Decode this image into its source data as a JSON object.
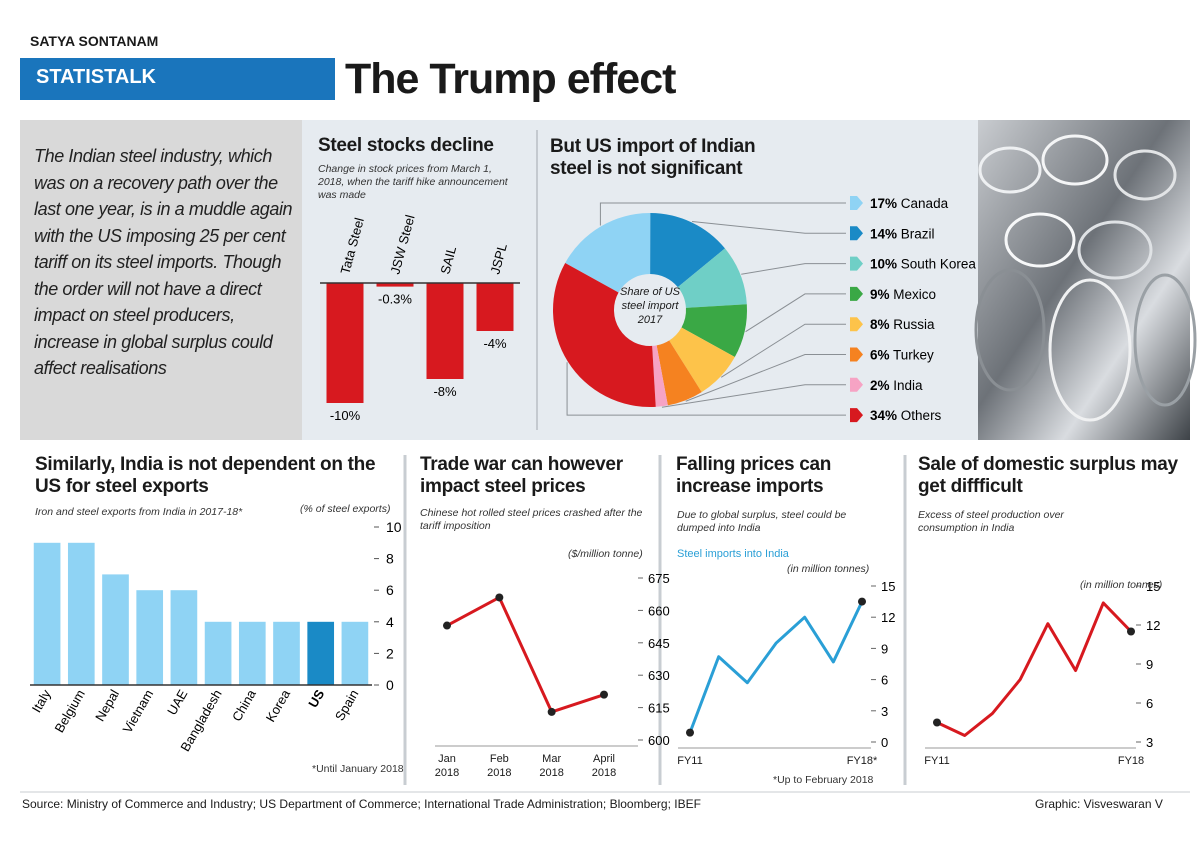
{
  "header": {
    "byline": "SATYA SONTANAM",
    "section": "STATISTALK",
    "title": "The Trump effect"
  },
  "intro": "The Indian steel industry, which was on a recovery path over the last one year, is in a muddle again with the US imposing 25 per cent tariff on its steel imports. Though the order will not have a direct impact on steel producers, increase in global surplus could affect realisations",
  "chart_data": [
    {
      "type": "bar",
      "title": "Steel stocks decline",
      "subtitle": "Change in stock prices from March 1, 2018, when the tariff hike announcement was made",
      "categories": [
        "Tata Steel",
        "JSW Steel",
        "SAIL",
        "JSPL"
      ],
      "values": [
        -10,
        -0.3,
        -8,
        -4
      ],
      "value_labels": [
        "-10%",
        "-0.3%",
        "-8%",
        "-4%"
      ],
      "color": "#d7191f"
    },
    {
      "type": "pie",
      "title": "But US import of Indian steel is not significant",
      "center_label": "Share of US steel import 2017",
      "categories": [
        "Canada",
        "Brazil",
        "South Korea",
        "Mexico",
        "Russia",
        "Turkey",
        "India",
        "Others"
      ],
      "values": [
        17,
        14,
        10,
        9,
        8,
        6,
        2,
        34
      ],
      "value_labels": [
        "17%",
        "14%",
        "10%",
        "9%",
        "8%",
        "6%",
        "2%",
        "34%"
      ],
      "colors": [
        "#8fd3f4",
        "#1a8ac6",
        "#6fcfc6",
        "#3aa845",
        "#fdc34a",
        "#f58220",
        "#f6a3c4",
        "#d7191f"
      ]
    },
    {
      "type": "bar",
      "title": "Similarly, India is not dependent on the US for steel exports",
      "subtitle": "Iron and steel exports from India in 2017-18*",
      "ylabel": "(% of steel exports)",
      "note": "*Until January 2018",
      "categories": [
        "Italy",
        "Belgium",
        "Nepal",
        "Vietnam",
        "UAE",
        "Bangladesh",
        "China",
        "Korea",
        "US",
        "Spain"
      ],
      "values": [
        9,
        9,
        7,
        6,
        6,
        4,
        4,
        4,
        4,
        4
      ],
      "colors": [
        "#8fd3f4",
        "#8fd3f4",
        "#8fd3f4",
        "#8fd3f4",
        "#8fd3f4",
        "#8fd3f4",
        "#8fd3f4",
        "#8fd3f4",
        "#1a8ac6",
        "#8fd3f4"
      ],
      "ylim": [
        0,
        10
      ],
      "yticks": [
        0,
        2,
        4,
        6,
        8,
        10
      ]
    },
    {
      "type": "line",
      "title": "Trade war can however impact steel prices",
      "subtitle": "Chinese hot rolled steel prices crashed after the tariff imposition",
      "ylabel": "($/million tonne)",
      "categories": [
        "Jan 2018",
        "Feb 2018",
        "Mar 2018",
        "April 2018"
      ],
      "values": [
        653,
        666,
        613,
        621
      ],
      "color": "#d7191f",
      "markers": "all",
      "ylim": [
        600,
        675
      ],
      "yticks": [
        600,
        615,
        630,
        645,
        660,
        675
      ]
    },
    {
      "type": "line",
      "title": "Falling prices can increase imports",
      "subtitle": "Due to global surplus, steel could be dumped into India",
      "series_label": "Steel imports into India",
      "ylabel": "(in million tonnes)",
      "note": "*Up to February 2018",
      "categories": [
        "FY11",
        null,
        null,
        null,
        null,
        null,
        "FY18*"
      ],
      "values": [
        0.9,
        8.2,
        5.7,
        9.5,
        12,
        7.7,
        13.5
      ],
      "color": "#2a9fd6",
      "markers": "ends",
      "ylim": [
        0,
        15
      ],
      "yticks": [
        0,
        3,
        6,
        9,
        12,
        15
      ]
    },
    {
      "type": "line",
      "title": "Sale of domestic surplus may get diffficult",
      "subtitle": "Excess of steel production over consumption in India",
      "ylabel": "(in million tonnes)",
      "categories": [
        "FY11",
        null,
        null,
        null,
        null,
        null,
        null,
        "FY18"
      ],
      "values": [
        4.5,
        3.5,
        5.2,
        7.8,
        12.1,
        8.5,
        13.7,
        11.5
      ],
      "color": "#d7191f",
      "markers": "ends",
      "ylim": [
        3,
        15
      ],
      "yticks": [
        3,
        6,
        9,
        12,
        15
      ]
    }
  ],
  "footer": {
    "source": "Source: Ministry of Commerce and Industry; US Department of Commerce; International Trade Administration; Bloomberg; IBEF",
    "credit": "Graphic: Visveswaran V"
  }
}
